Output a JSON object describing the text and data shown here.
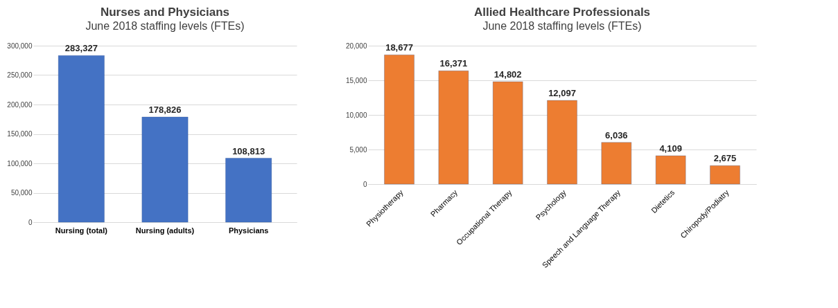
{
  "chart_data": [
    {
      "type": "bar",
      "title": "Nurses and Physicians",
      "subtitle": "June 2018 staffing levels (FTEs)",
      "categories": [
        "Nursing (total)",
        "Nursing (adults)",
        "Physicians"
      ],
      "series": [
        {
          "color": "#4472c4",
          "values": [
            283327,
            178826,
            108813
          ],
          "value_labels": [
            "283,327",
            "178,826",
            "108,813"
          ]
        }
      ],
      "ylim": [
        0,
        300000
      ],
      "yticks": [
        0,
        {
          "value": 50000,
          "label": "50,000"
        },
        {
          "value": 100000,
          "label": "100,000"
        },
        {
          "value": 150000,
          "label": "150,000"
        },
        {
          "value": 200000,
          "label": "200,000"
        },
        {
          "value": 250000,
          "label": "250,000"
        },
        {
          "value": 300000,
          "label": "300,000"
        }
      ],
      "grid": "y"
    },
    {
      "type": "bar",
      "title": "Allied Healthcare Professionals",
      "subtitle": "June 2018 staffing levels (FTEs)",
      "categories": [
        "Physiotherapy",
        "Pharmacy",
        "Occupational Therapy",
        "Psychology",
        "Speech and Language Therapy",
        "Dietetics",
        "Chiropody/Podiatry"
      ],
      "series": [
        {
          "color": "#ed7d31",
          "values": [
            18677,
            16371,
            14802,
            12097,
            6036,
            4109,
            2675
          ],
          "value_labels": [
            "18,677",
            "16,371",
            "14,802",
            "12,097",
            "6,036",
            "4,109",
            "2,675"
          ]
        }
      ],
      "ylim": [
        0,
        20000
      ],
      "yticks": [
        0,
        {
          "value": 5000,
          "label": "5,000"
        },
        {
          "value": 10000,
          "label": "10,000"
        },
        {
          "value": 15000,
          "label": "15,000"
        },
        {
          "value": 20000,
          "label": "20,000"
        }
      ],
      "grid": "y"
    }
  ]
}
